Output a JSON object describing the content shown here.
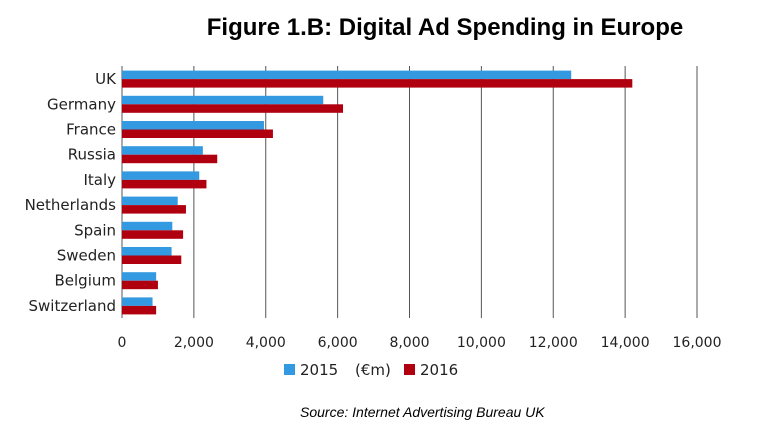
{
  "chart_data": {
    "type": "bar",
    "orientation": "horizontal",
    "title": "Figure 1.B: Digital Ad Spending in Europe",
    "source": "Source: Internet Advertising Bureau UK",
    "categories": [
      "UK",
      "Germany",
      "France",
      "Russia",
      "Italy",
      "Netherlands",
      "Spain",
      "Sweden",
      "Belgium",
      "Switzerland"
    ],
    "series": [
      {
        "name": "2015",
        "color": "#3399e0",
        "values": [
          12500,
          5600,
          3950,
          2250,
          2150,
          1550,
          1400,
          1380,
          950,
          850
        ]
      },
      {
        "name": "2016",
        "color": "#b00010",
        "values": [
          14200,
          6150,
          4200,
          2650,
          2350,
          1780,
          1700,
          1650,
          1000,
          950
        ]
      }
    ],
    "unit_label": "(€m)",
    "xlim": [
      0,
      16000
    ],
    "xticks": [
      "0",
      "2,000",
      "4,000",
      "6,000",
      "8,000",
      "10,000",
      "12,000",
      "14,000",
      "16,000"
    ],
    "grid": "vertical",
    "legend": "bottom-center"
  }
}
